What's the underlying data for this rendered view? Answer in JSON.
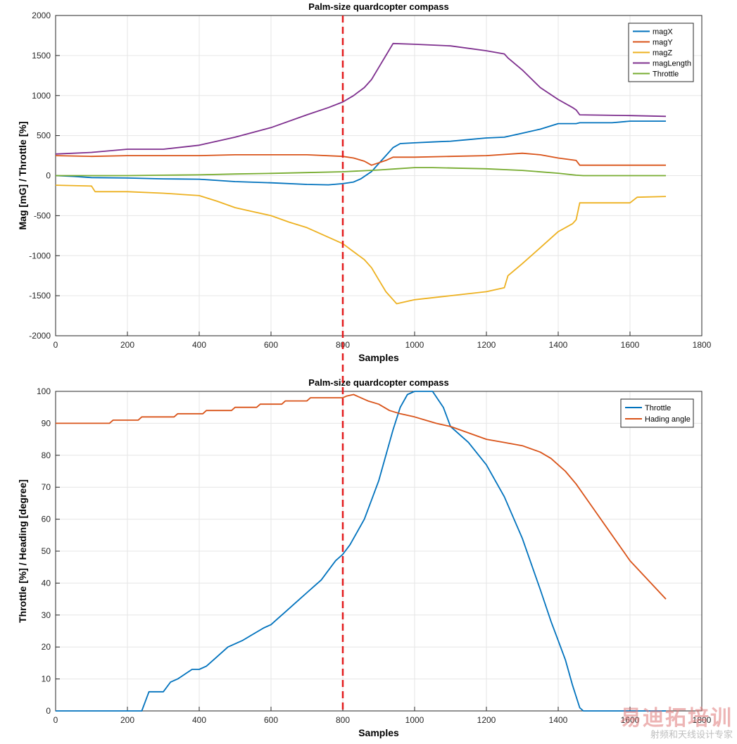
{
  "chart_data": [
    {
      "type": "line",
      "title": "Palm-size quardcopter compass",
      "xlabel": "Samples",
      "ylabel": "Mag [mG] / Throttle [%]",
      "xlim": [
        0,
        1800
      ],
      "ylim": [
        -2000,
        2000
      ],
      "xticks": [
        0,
        200,
        400,
        600,
        800,
        1000,
        1200,
        1400,
        1600,
        1800
      ],
      "yticks": [
        -2000,
        -1500,
        -1000,
        -500,
        0,
        500,
        1000,
        1500,
        2000
      ],
      "grid": true,
      "legend_position": "top-right",
      "series": [
        {
          "name": "magX",
          "color": "#0072BD",
          "x": [
            0,
            50,
            100,
            200,
            300,
            400,
            500,
            600,
            700,
            760,
            800,
            830,
            850,
            880,
            900,
            920,
            940,
            960,
            1000,
            1050,
            1100,
            1150,
            1200,
            1250,
            1300,
            1350,
            1400,
            1450,
            1460,
            1550,
            1600,
            1700
          ],
          "y": [
            0,
            -10,
            -25,
            -30,
            -40,
            -45,
            -75,
            -90,
            -110,
            -115,
            -100,
            -80,
            -40,
            50,
            150,
            250,
            350,
            400,
            410,
            420,
            430,
            450,
            470,
            480,
            530,
            580,
            650,
            650,
            660,
            660,
            680,
            680
          ]
        },
        {
          "name": "magY",
          "color": "#D95319",
          "x": [
            0,
            100,
            200,
            300,
            400,
            500,
            600,
            700,
            800,
            830,
            860,
            880,
            900,
            920,
            940,
            1000,
            1100,
            1200,
            1300,
            1350,
            1400,
            1450,
            1460,
            1600,
            1700
          ],
          "y": [
            250,
            240,
            250,
            250,
            250,
            260,
            260,
            260,
            240,
            220,
            180,
            130,
            160,
            190,
            230,
            230,
            240,
            250,
            280,
            260,
            220,
            190,
            130,
            130,
            130
          ]
        },
        {
          "name": "magZ",
          "color": "#EDB120",
          "x": [
            0,
            100,
            110,
            200,
            300,
            400,
            450,
            500,
            550,
            600,
            650,
            700,
            750,
            800,
            830,
            860,
            880,
            900,
            920,
            940,
            950,
            1000,
            1100,
            1200,
            1250,
            1260,
            1300,
            1350,
            1400,
            1440,
            1450,
            1460,
            1550,
            1600,
            1620,
            1700
          ],
          "y": [
            -120,
            -130,
            -200,
            -200,
            -220,
            -250,
            -320,
            -400,
            -450,
            -500,
            -580,
            -650,
            -750,
            -850,
            -950,
            -1050,
            -1150,
            -1300,
            -1450,
            -1550,
            -1600,
            -1550,
            -1500,
            -1450,
            -1400,
            -1250,
            -1100,
            -900,
            -700,
            -600,
            -550,
            -340,
            -340,
            -340,
            -270,
            -260
          ]
        },
        {
          "name": "magLength",
          "color": "#7E2F8E",
          "x": [
            0,
            100,
            200,
            300,
            400,
            500,
            600,
            700,
            760,
            800,
            830,
            860,
            880,
            900,
            920,
            940,
            1000,
            1100,
            1200,
            1250,
            1260,
            1300,
            1350,
            1400,
            1440,
            1450,
            1460,
            1600,
            1700
          ],
          "y": [
            270,
            290,
            330,
            330,
            380,
            480,
            600,
            760,
            850,
            920,
            1000,
            1100,
            1200,
            1350,
            1500,
            1650,
            1640,
            1620,
            1560,
            1520,
            1470,
            1320,
            1100,
            950,
            850,
            820,
            760,
            750,
            740
          ]
        },
        {
          "name": "Throttle",
          "color": "#77AC30",
          "x": [
            0,
            100,
            200,
            300,
            400,
            500,
            600,
            700,
            800,
            900,
            950,
            1000,
            1050,
            1100,
            1200,
            1300,
            1400,
            1450,
            1470,
            1600,
            1700
          ],
          "y": [
            0,
            0,
            0,
            5,
            10,
            20,
            28,
            38,
            48,
            70,
            85,
            100,
            100,
            95,
            85,
            65,
            30,
            5,
            0,
            0,
            0
          ]
        }
      ]
    },
    {
      "type": "line",
      "title": "Palm-size quardcopter compass",
      "xlabel": "Samples",
      "ylabel": "Throttle [%] / Heading [degree]",
      "xlim": [
        0,
        1800
      ],
      "ylim": [
        0,
        100
      ],
      "xticks": [
        0,
        200,
        400,
        600,
        800,
        1000,
        1200,
        1400,
        1600,
        1800
      ],
      "yticks": [
        0,
        10,
        20,
        30,
        40,
        50,
        60,
        70,
        80,
        90,
        100
      ],
      "grid": true,
      "legend_position": "top-right",
      "series": [
        {
          "name": "Throttle",
          "color": "#0072BD",
          "x": [
            0,
            240,
            250,
            260,
            300,
            320,
            340,
            380,
            400,
            420,
            440,
            460,
            480,
            520,
            550,
            580,
            600,
            620,
            640,
            660,
            680,
            700,
            720,
            740,
            760,
            780,
            800,
            820,
            840,
            860,
            880,
            900,
            920,
            940,
            960,
            980,
            1000,
            1050,
            1080,
            1100,
            1150,
            1200,
            1250,
            1300,
            1350,
            1380,
            1400,
            1420,
            1440,
            1460,
            1470,
            1500,
            1700
          ],
          "y": [
            0,
            0,
            3,
            6,
            6,
            9,
            10,
            13,
            13,
            14,
            16,
            18,
            20,
            22,
            24,
            26,
            27,
            29,
            31,
            33,
            35,
            37,
            39,
            41,
            44,
            47,
            49,
            52,
            56,
            60,
            66,
            72,
            80,
            88,
            95,
            99,
            100,
            100,
            95,
            89,
            84,
            77,
            67,
            54,
            38,
            28,
            22,
            16,
            8,
            1,
            0,
            0,
            0
          ]
        },
        {
          "name": "Hading angle",
          "color": "#D95319",
          "x": [
            0,
            150,
            160,
            230,
            240,
            330,
            340,
            410,
            420,
            490,
            500,
            560,
            570,
            630,
            640,
            700,
            710,
            800,
            810,
            830,
            850,
            870,
            900,
            930,
            960,
            1000,
            1030,
            1060,
            1100,
            1150,
            1200,
            1250,
            1300,
            1350,
            1380,
            1400,
            1420,
            1450,
            1500,
            1550,
            1600,
            1650,
            1700
          ],
          "y": [
            90,
            90,
            91,
            91,
            92,
            92,
            93,
            93,
            94,
            94,
            95,
            95,
            96,
            96,
            97,
            97,
            98,
            98,
            98.5,
            99,
            98,
            97,
            96,
            94,
            93,
            92,
            91,
            90,
            89,
            87,
            85,
            84,
            83,
            81,
            79,
            77,
            75,
            71,
            63,
            55,
            47,
            41,
            35
          ]
        }
      ]
    }
  ],
  "marker_line": {
    "x": 800,
    "color": "#E31A1C"
  },
  "watermark": {
    "big": "易迪拓培训",
    "small": "射频和天线设计专家"
  }
}
